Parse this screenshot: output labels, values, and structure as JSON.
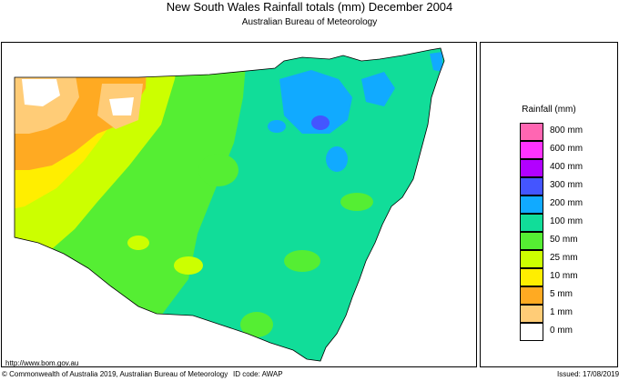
{
  "header": {
    "title": "New South Wales Rainfall totals (mm)     December 2004",
    "subtitle": "Australian Bureau of Meteorology"
  },
  "map": {
    "url": "http://www.bom.gov.au"
  },
  "legend": {
    "title": "Rainfall (mm)",
    "items": [
      {
        "label": "800 mm",
        "color": "#ff66b2"
      },
      {
        "label": "600 mm",
        "color": "#ff33ff"
      },
      {
        "label": "400 mm",
        "color": "#b200ff"
      },
      {
        "label": "300 mm",
        "color": "#4455ff"
      },
      {
        "label": "200 mm",
        "color": "#11aaff"
      },
      {
        "label": "100 mm",
        "color": "#11dd99"
      },
      {
        "label": "50 mm",
        "color": "#55ee33"
      },
      {
        "label": "25 mm",
        "color": "#ccff00"
      },
      {
        "label": "10 mm",
        "color": "#ffee00"
      },
      {
        "label": "5 mm",
        "color": "#ffaa22"
      },
      {
        "label": "1 mm",
        "color": "#ffcc77"
      },
      {
        "label": "0 mm",
        "color": "#ffffff"
      }
    ]
  },
  "footer": {
    "copyright": "© Commonwealth of Australia 2019, Australian Bureau of Meteorology",
    "id_code": "ID code: AWAP",
    "issued": "Issued: 17/08/2019"
  }
}
